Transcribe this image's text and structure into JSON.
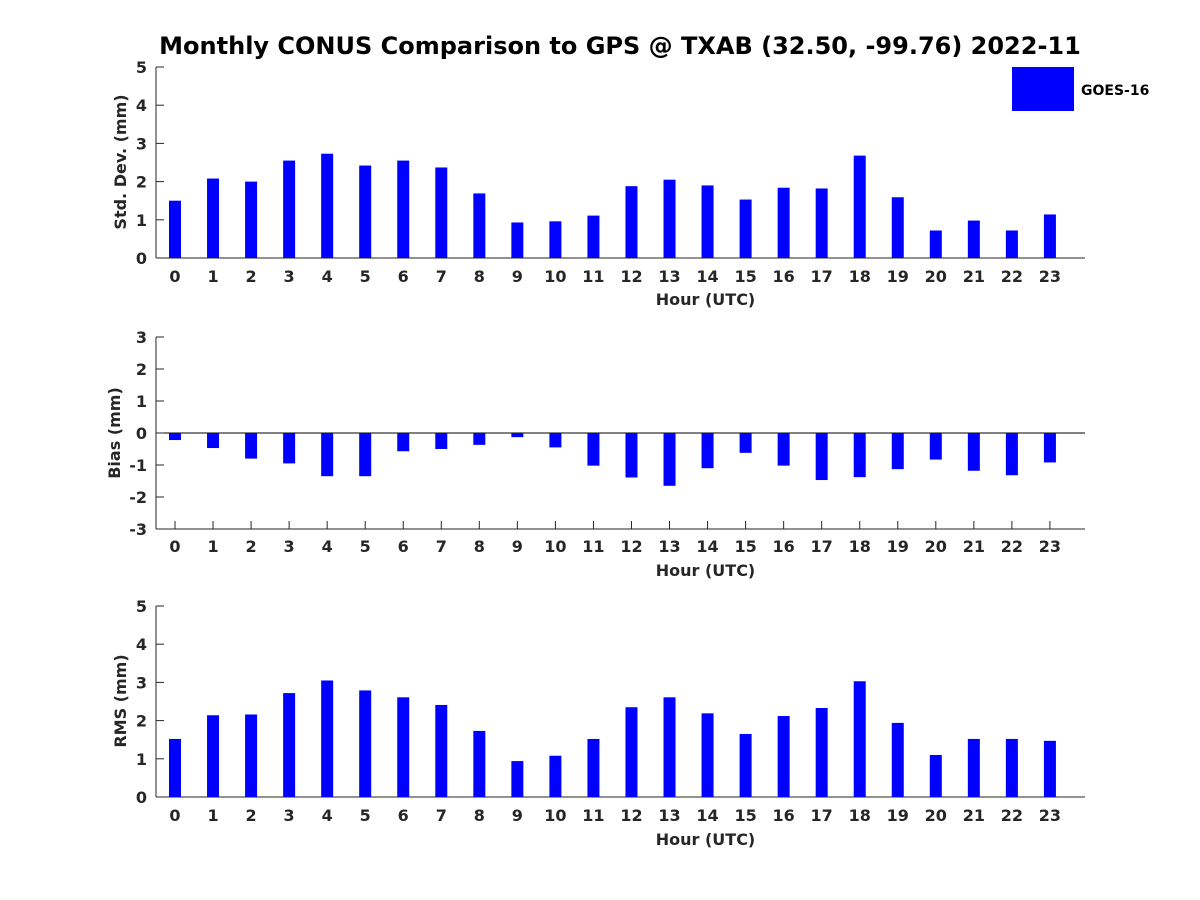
{
  "chart_data": [
    {
      "type": "bar",
      "title": "Monthly CONUS Comparison to GPS @ TXAB (32.50, -99.76) 2022-11",
      "xlabel": "Hour (UTC)",
      "ylabel": "Std. Dev. (mm)",
      "ylim": [
        0,
        5
      ],
      "yticks": [
        0,
        1,
        2,
        3,
        4,
        5
      ],
      "categories": [
        "0",
        "1",
        "2",
        "3",
        "4",
        "5",
        "6",
        "7",
        "8",
        "9",
        "10",
        "11",
        "12",
        "13",
        "14",
        "15",
        "16",
        "17",
        "18",
        "19",
        "20",
        "21",
        "22",
        "23"
      ],
      "series": [
        {
          "name": "GOES-16",
          "color": "#0000ff",
          "values": [
            1.5,
            2.08,
            2.0,
            2.55,
            2.73,
            2.42,
            2.55,
            2.37,
            1.69,
            0.93,
            0.96,
            1.11,
            1.88,
            2.05,
            1.9,
            1.53,
            1.84,
            1.82,
            2.68,
            1.59,
            0.72,
            0.98,
            0.72,
            1.14
          ]
        }
      ],
      "legend": {
        "position": "top-right",
        "entries": [
          "GOES-16"
        ]
      }
    },
    {
      "type": "bar",
      "xlabel": "Hour (UTC)",
      "ylabel": "Bias (mm)",
      "ylim": [
        -3,
        3
      ],
      "yticks": [
        -3,
        -2,
        -1,
        0,
        1,
        2,
        3
      ],
      "categories": [
        "0",
        "1",
        "2",
        "3",
        "4",
        "5",
        "6",
        "7",
        "8",
        "9",
        "10",
        "11",
        "12",
        "13",
        "14",
        "15",
        "16",
        "17",
        "18",
        "19",
        "20",
        "21",
        "22",
        "23"
      ],
      "series": [
        {
          "name": "GOES-16",
          "color": "#0000ff",
          "values": [
            -0.22,
            -0.47,
            -0.8,
            -0.95,
            -1.35,
            -1.35,
            -0.57,
            -0.5,
            -0.37,
            -0.13,
            -0.45,
            -1.02,
            -1.39,
            -1.65,
            -1.1,
            -0.62,
            -1.02,
            -1.47,
            -1.38,
            -1.13,
            -0.83,
            -1.18,
            -1.32,
            -0.92
          ]
        }
      ]
    },
    {
      "type": "bar",
      "xlabel": "Hour (UTC)",
      "ylabel": "RMS (mm)",
      "ylim": [
        0,
        5
      ],
      "yticks": [
        0,
        1,
        2,
        3,
        4,
        5
      ],
      "categories": [
        "0",
        "1",
        "2",
        "3",
        "4",
        "5",
        "6",
        "7",
        "8",
        "9",
        "10",
        "11",
        "12",
        "13",
        "14",
        "15",
        "16",
        "17",
        "18",
        "19",
        "20",
        "21",
        "22",
        "23"
      ],
      "series": [
        {
          "name": "GOES-16",
          "color": "#0000ff",
          "values": [
            1.52,
            2.14,
            2.16,
            2.72,
            3.05,
            2.79,
            2.61,
            2.41,
            1.73,
            0.94,
            1.08,
            1.52,
            2.35,
            2.61,
            2.19,
            1.65,
            2.12,
            2.33,
            3.03,
            1.94,
            1.1,
            1.52,
            1.52,
            1.47
          ]
        }
      ]
    }
  ]
}
